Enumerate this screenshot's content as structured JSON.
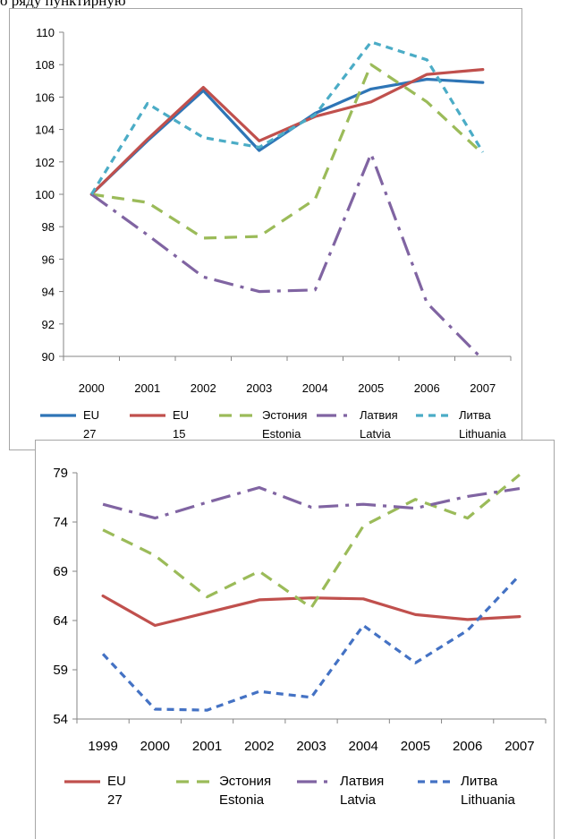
{
  "page": {
    "top_text": "о ряду пунктирную"
  },
  "chart_data": [
    {
      "type": "line",
      "x": [
        "2000",
        "2001",
        "2002",
        "2003",
        "2004",
        "2005",
        "2006",
        "2007"
      ],
      "ylim": [
        90,
        110
      ],
      "yticks": [
        "90",
        "92",
        "94",
        "96",
        "98",
        "100",
        "102",
        "104",
        "106",
        "108",
        "110"
      ],
      "series": [
        {
          "name": "EU 27",
          "name2": "",
          "color": "#2e75b6",
          "dash": "solid",
          "values": [
            100,
            103.3,
            106.4,
            102.7,
            105.0,
            106.5,
            107.1,
            106.9
          ]
        },
        {
          "name": "EU 15",
          "name2": "",
          "color": "#c0504d",
          "dash": "solid",
          "values": [
            100,
            103.4,
            106.6,
            103.3,
            104.8,
            105.7,
            107.4,
            107.7
          ]
        },
        {
          "name": "Эстония",
          "name2": "Estonia",
          "color": "#9bbb59",
          "dash": "long",
          "values": [
            100,
            99.5,
            97.3,
            97.4,
            99.7,
            108.0,
            105.7,
            102.5
          ]
        },
        {
          "name": "Латвия",
          "name2": "Latvia",
          "color": "#8064a2",
          "dash": "longdot",
          "values": [
            100,
            97.5,
            94.9,
            94.0,
            94.1,
            102.5,
            93.3,
            89.8
          ]
        },
        {
          "name": "Литва",
          "name2": "Lithuania",
          "color": "#4bacc6",
          "dash": "short",
          "values": [
            100,
            105.6,
            103.5,
            102.9,
            104.9,
            109.4,
            108.3,
            102.6
          ]
        }
      ]
    },
    {
      "type": "line",
      "x": [
        "1999",
        "2000",
        "2001",
        "2002",
        "2003",
        "2004",
        "2005",
        "2006",
        "2007"
      ],
      "ylim": [
        54,
        79
      ],
      "yticks": [
        "54",
        "59",
        "64",
        "69",
        "74",
        "79"
      ],
      "series": [
        {
          "name": "EU 27",
          "name2": "",
          "color": "#c0504d",
          "dash": "solid",
          "values": [
            66.5,
            63.5,
            64.8,
            66.1,
            66.3,
            66.2,
            64.6,
            64.1,
            64.4
          ]
        },
        {
          "name": "Эстония",
          "name2": "Estonia",
          "color": "#9bbb59",
          "dash": "long",
          "values": [
            73.2,
            70.6,
            66.4,
            69.0,
            65.3,
            73.6,
            76.3,
            74.4,
            78.8
          ]
        },
        {
          "name": "Латвия",
          "name2": "Latvia",
          "color": "#8064a2",
          "dash": "longdot",
          "values": [
            75.8,
            74.4,
            76.0,
            77.5,
            75.5,
            75.8,
            75.4,
            76.6,
            77.4
          ]
        },
        {
          "name": "Литва",
          "name2": "Lithuania",
          "color": "#4472c4",
          "dash": "short",
          "values": [
            60.6,
            55.0,
            54.9,
            56.8,
            56.2,
            63.5,
            59.7,
            63.0,
            68.6
          ]
        }
      ]
    }
  ]
}
